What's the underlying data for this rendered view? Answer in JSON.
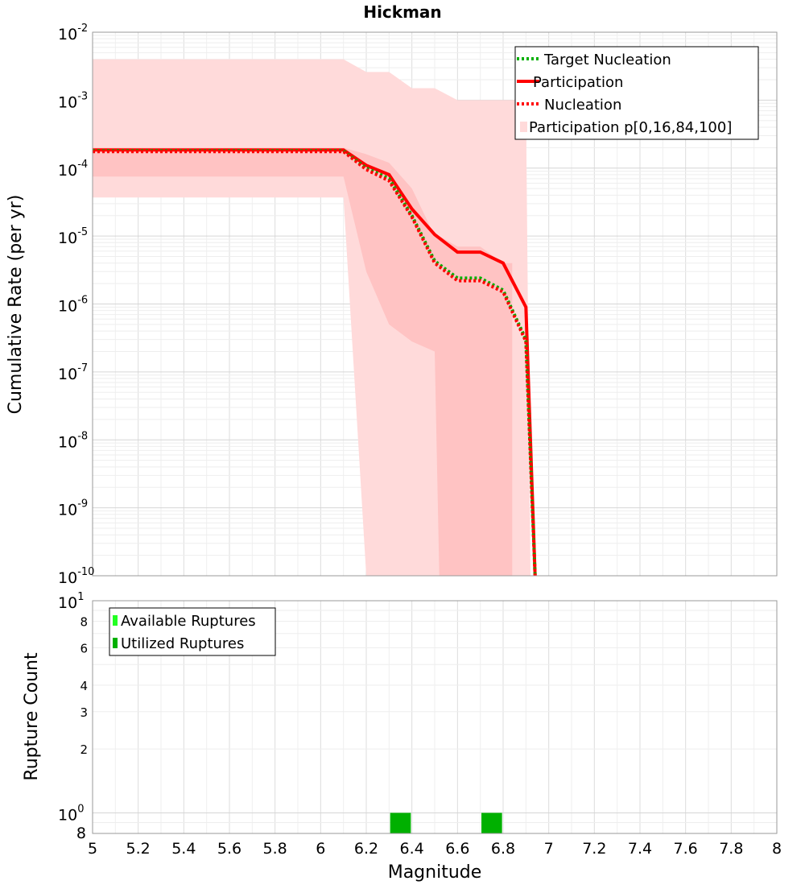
{
  "chart_data": [
    {
      "type": "line",
      "title": "Hickman",
      "xlabel": "",
      "ylabel": "Cumulative Rate (per yr)",
      "xlim": [
        5,
        8
      ],
      "ylim": [
        1e-10,
        0.01
      ],
      "yscale": "log",
      "grid": true,
      "legend_position": "top-right",
      "y_ticks": [
        {
          "base": "10",
          "exp": "-2"
        },
        {
          "base": "10",
          "exp": "-3"
        },
        {
          "base": "10",
          "exp": "-4"
        },
        {
          "base": "10",
          "exp": "-5"
        },
        {
          "base": "10",
          "exp": "-6"
        },
        {
          "base": "10",
          "exp": "-7"
        },
        {
          "base": "10",
          "exp": "-8"
        },
        {
          "base": "10",
          "exp": "-9"
        },
        {
          "base": "10",
          "exp": "-10"
        }
      ],
      "bands": [
        {
          "name": "Participation p[0,16,84,100]",
          "kind": "outer",
          "color": "#ffdada",
          "x": [
            5.0,
            6.1,
            6.2,
            6.3,
            6.4,
            6.5,
            6.6,
            6.7,
            6.8,
            6.9,
            6.92
          ],
          "upper": [
            0.004,
            0.004,
            0.0026,
            0.0026,
            0.0015,
            0.0015,
            0.001,
            0.001,
            0.001,
            0.001,
            1e-10
          ],
          "lower": [
            3.7e-05,
            3.7e-05,
            1e-10,
            1e-10,
            1e-10,
            1e-10,
            1e-10,
            1e-10,
            1e-10,
            1e-10,
            1e-10
          ]
        },
        {
          "name": "p16-84",
          "kind": "inner",
          "color": "#ffc3c3",
          "x": [
            5.0,
            6.1,
            6.2,
            6.3,
            6.4,
            6.5,
            6.52,
            6.6,
            6.7,
            6.8,
            6.84
          ],
          "upper": [
            0.0002,
            0.0002,
            0.00016,
            0.00012,
            5e-05,
            1e-05,
            1e-05,
            7e-06,
            7e-06,
            4e-06,
            4e-06
          ],
          "lower": [
            7.5e-05,
            7.5e-05,
            3e-06,
            5e-07,
            2.8e-07,
            2e-07,
            1e-10,
            1e-10,
            1e-10,
            1e-10,
            1e-10
          ]
        }
      ],
      "series": [
        {
          "name": "Target Nucleation",
          "color": "#00b000",
          "style": "dotted",
          "x": [
            5.0,
            6.1,
            6.2,
            6.3,
            6.4,
            6.5,
            6.6,
            6.7,
            6.8,
            6.9,
            6.94
          ],
          "y": [
            0.00018,
            0.00018,
            0.0001,
            7e-05,
            2e-05,
            4.3e-06,
            2.4e-06,
            2.4e-06,
            1.6e-06,
            3e-07,
            1e-10
          ]
        },
        {
          "name": "Participation",
          "color": "#ff0000",
          "style": "solid",
          "x": [
            5.0,
            6.1,
            6.2,
            6.3,
            6.4,
            6.5,
            6.6,
            6.7,
            6.8,
            6.9,
            6.94
          ],
          "y": [
            0.000185,
            0.000185,
            0.00011,
            8e-05,
            2.5e-05,
            1.05e-05,
            5.8e-06,
            5.8e-06,
            4e-06,
            9e-07,
            1e-10
          ]
        },
        {
          "name": "Nucleation",
          "color": "#ff0000",
          "style": "dotted",
          "x": [
            5.0,
            6.1,
            6.2,
            6.3,
            6.4,
            6.5,
            6.6,
            6.7,
            6.8,
            6.9,
            6.94
          ],
          "y": [
            0.000175,
            0.000175,
            9.5e-05,
            6.5e-05,
            1.9e-05,
            4e-06,
            2.2e-06,
            2.2e-06,
            1.5e-06,
            2.8e-07,
            1e-10
          ]
        }
      ],
      "legend": [
        {
          "label": "Target Nucleation",
          "swatch": "dotted-line",
          "color": "#00b000"
        },
        {
          "label": "Participation",
          "swatch": "solid-line",
          "color": "#ff0000"
        },
        {
          "label": "Nucleation",
          "swatch": "dotted-line",
          "color": "#ff0000"
        },
        {
          "label": "Participation p[0,16,84,100]",
          "swatch": "box",
          "color": "#ffdada"
        }
      ]
    },
    {
      "type": "bar",
      "title": "",
      "xlabel": "Magnitude",
      "ylabel": "Rupture Count",
      "xlim": [
        5,
        8
      ],
      "ylim": [
        0.8,
        10
      ],
      "yscale": "log",
      "grid": true,
      "legend_position": "top-left",
      "x_ticks": [
        "5",
        "5.2",
        "5.4",
        "5.6",
        "5.8",
        "6",
        "6.2",
        "6.4",
        "6.6",
        "6.8",
        "7",
        "7.2",
        "7.4",
        "7.6",
        "7.8",
        "8"
      ],
      "y_major_ticks": [
        {
          "value": 10,
          "base": "10",
          "exp": "1"
        },
        {
          "value": 1,
          "base": "10",
          "exp": "0"
        }
      ],
      "y_minor_ticks": [
        {
          "value": 8,
          "label": "8"
        },
        {
          "value": 6,
          "label": "6"
        },
        {
          "value": 4,
          "label": "4"
        },
        {
          "value": 3,
          "label": "3"
        },
        {
          "value": 2,
          "label": "2"
        },
        {
          "value": 0.8,
          "label": "8"
        }
      ],
      "series": [
        {
          "name": "Available Ruptures",
          "color": "#22ff22",
          "bars": [
            {
              "x": 6.35,
              "value": 1
            },
            {
              "x": 6.75,
              "value": 1
            }
          ]
        },
        {
          "name": "Utilized Ruptures",
          "color": "#00b000",
          "bars": [
            {
              "x": 6.35,
              "value": 1
            },
            {
              "x": 6.75,
              "value": 1
            }
          ]
        }
      ],
      "legend": [
        {
          "label": "Available Ruptures",
          "color": "#22ff22"
        },
        {
          "label": "Utilized Ruptures",
          "color": "#00b000"
        }
      ]
    }
  ]
}
